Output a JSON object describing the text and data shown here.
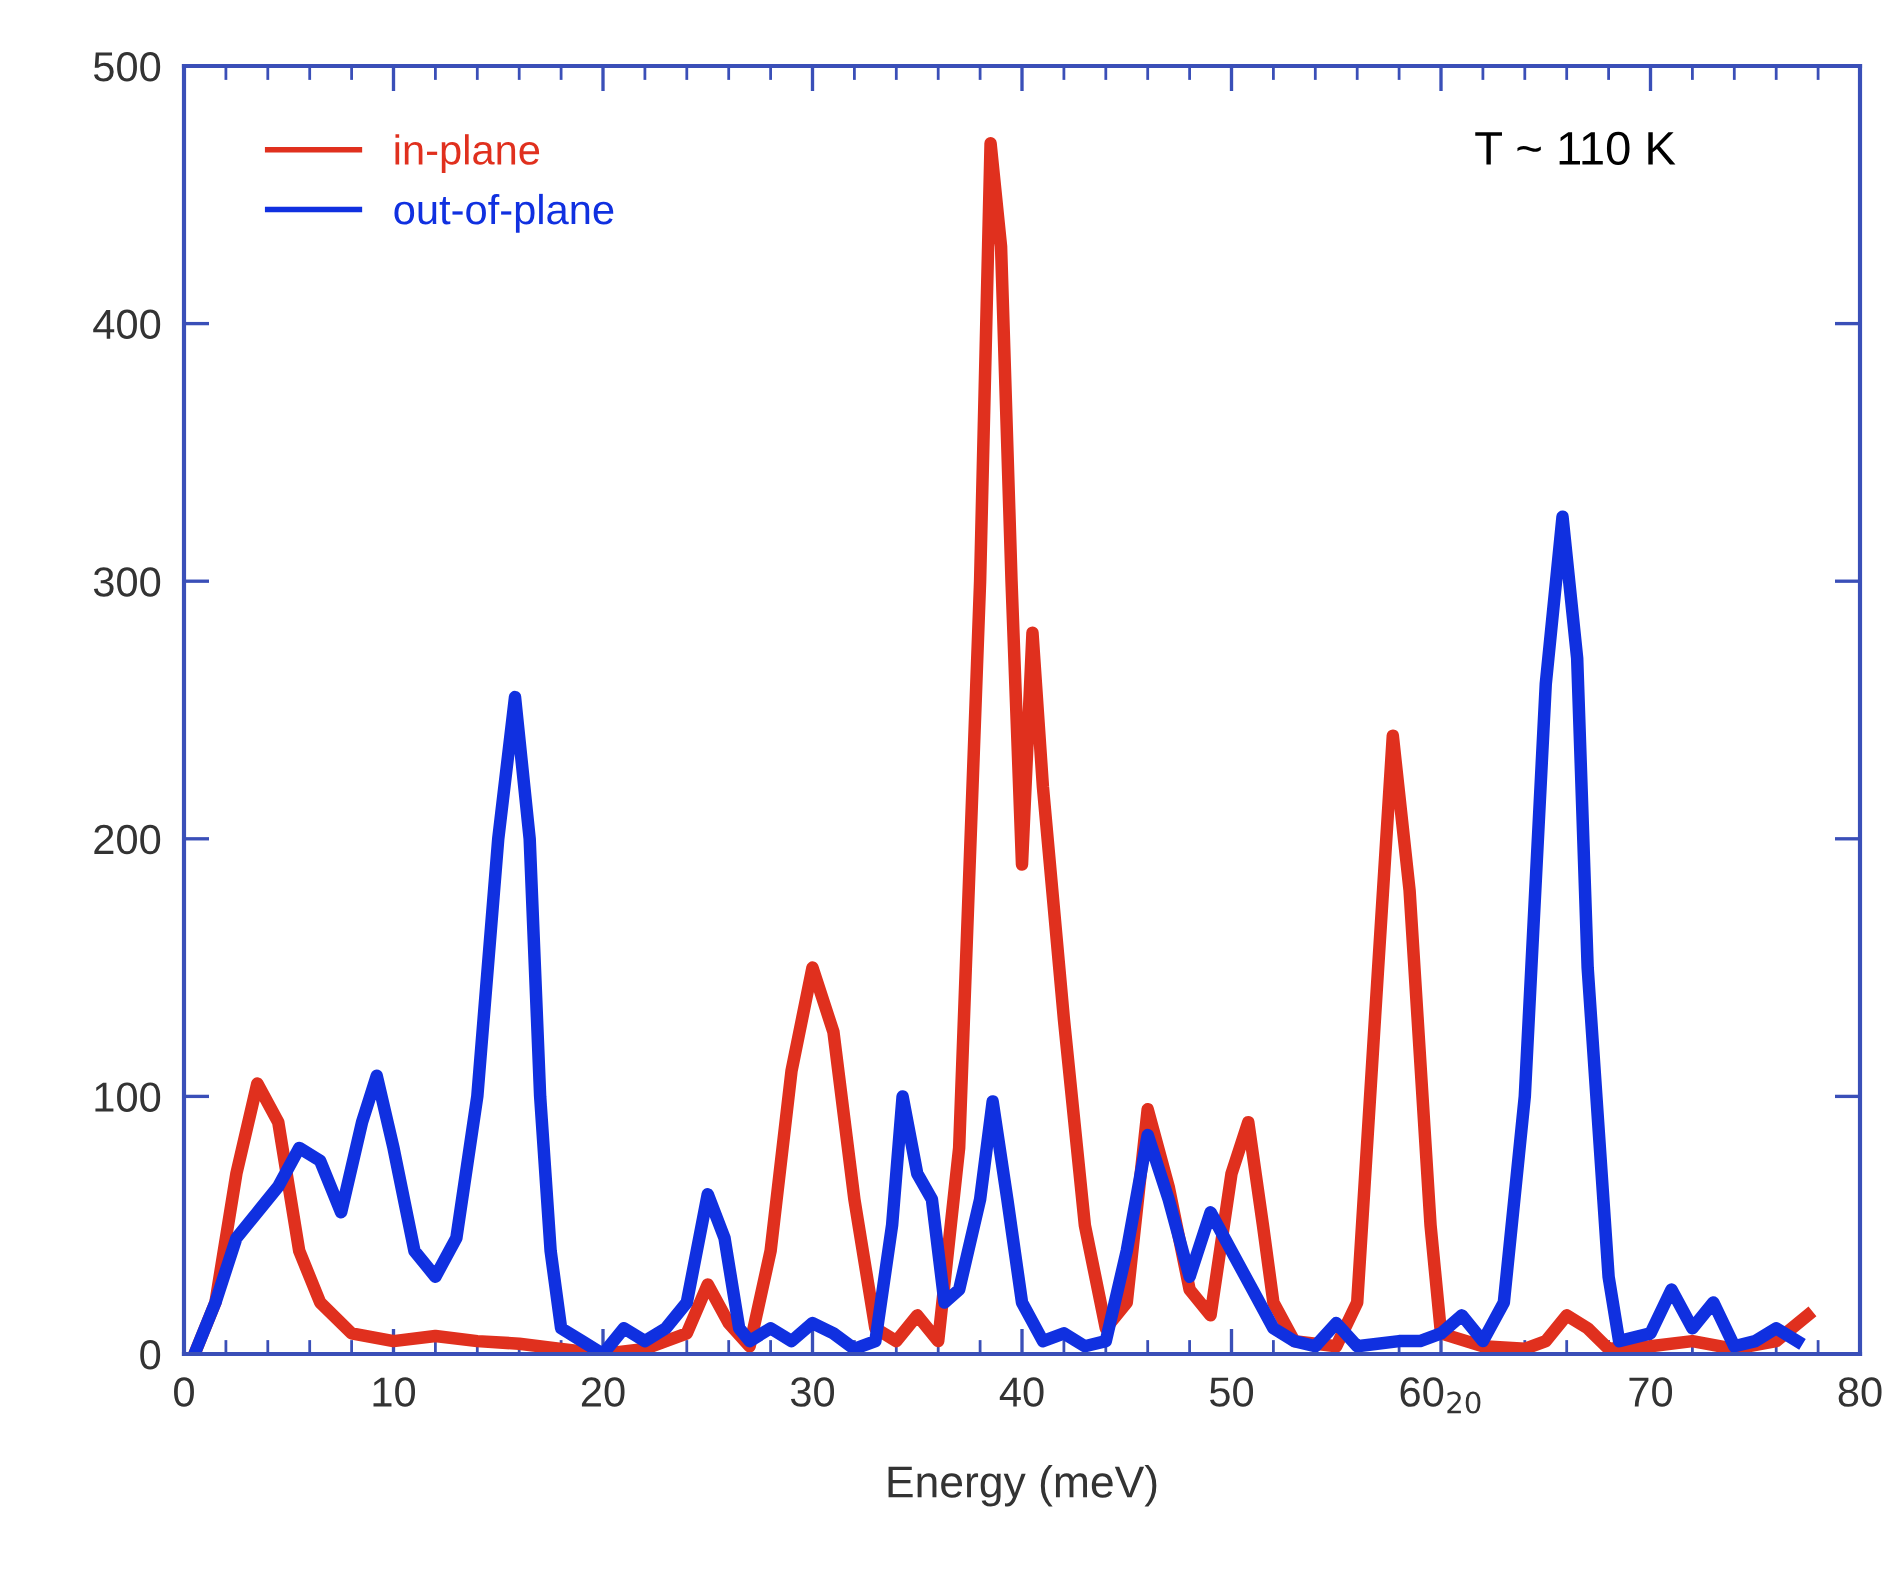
{
  "chart_data": {
    "type": "line",
    "xlabel": "Energy (meV)",
    "annotations": [
      "T ~ 110 K"
    ],
    "xlim": [
      0,
      80
    ],
    "xticks": [
      0,
      10,
      20,
      30,
      40,
      50,
      {
        "value": 60,
        "label": "60$_{20}$"
      },
      70,
      80
    ],
    "ylim": [
      0,
      500
    ],
    "yticks": [
      0,
      100,
      200,
      300,
      400,
      500
    ],
    "legend": "top left",
    "grid": false,
    "marker": "none",
    "line_style": "solid",
    "series": [
      {
        "name": "in-plane",
        "color": "#e0301e",
        "x": [
          0.5,
          1.5,
          2.5,
          3.5,
          4.5,
          5.5,
          6.5,
          8,
          10,
          12,
          14,
          16,
          18,
          20,
          22,
          24,
          25,
          26,
          27,
          28,
          29,
          30,
          31,
          32,
          33,
          34,
          35,
          36,
          37,
          38,
          38.5,
          39,
          39.5,
          40,
          40.5,
          41,
          42,
          43,
          44,
          45,
          46,
          47,
          48,
          49,
          50,
          50.8,
          51.5,
          52,
          53,
          55,
          56,
          57,
          57.7,
          58.5,
          59.5,
          60,
          62,
          64,
          65,
          66,
          67,
          68,
          70,
          72,
          74,
          76,
          77.5
        ],
        "values": [
          0,
          20,
          70,
          105,
          90,
          40,
          20,
          8,
          5,
          7,
          5,
          4,
          2,
          0,
          2,
          8,
          27,
          12,
          3,
          40,
          110,
          150,
          125,
          60,
          10,
          5,
          15,
          5,
          80,
          300,
          470,
          430,
          300,
          190,
          280,
          220,
          130,
          50,
          10,
          20,
          95,
          65,
          25,
          15,
          70,
          90,
          50,
          20,
          5,
          3,
          20,
          150,
          240,
          180,
          50,
          8,
          3,
          2,
          5,
          15,
          10,
          2,
          3,
          5,
          2,
          5,
          15
        ]
      },
      {
        "name": "out-of-plane",
        "color": "#1030e0",
        "x": [
          0.5,
          1.5,
          2.5,
          3.5,
          4.5,
          5.5,
          6.5,
          7.5,
          8.5,
          9.2,
          10,
          11,
          12,
          13,
          14,
          15,
          15.8,
          16.5,
          17,
          17.5,
          18,
          19,
          20,
          21,
          22,
          23,
          24,
          25,
          25.8,
          26.5,
          27,
          28,
          29,
          30,
          31,
          32,
          33,
          33.8,
          34.3,
          35,
          35.7,
          36.3,
          37,
          38,
          38.6,
          39.3,
          40,
          41,
          42,
          43,
          44,
          45,
          46,
          47,
          48,
          49,
          50,
          51,
          52,
          53,
          54,
          55,
          56,
          58,
          59,
          60,
          61,
          62,
          63,
          64,
          65,
          65.8,
          66.5,
          67,
          68,
          68.5,
          70,
          71,
          72,
          73,
          74,
          75,
          76,
          77
        ],
        "values": [
          0,
          20,
          45,
          55,
          65,
          80,
          75,
          55,
          90,
          108,
          80,
          40,
          30,
          45,
          100,
          200,
          255,
          200,
          100,
          40,
          10,
          5,
          0,
          10,
          5,
          10,
          20,
          62,
          45,
          10,
          5,
          10,
          5,
          12,
          8,
          2,
          5,
          50,
          100,
          70,
          60,
          20,
          25,
          60,
          98,
          60,
          20,
          5,
          8,
          3,
          5,
          40,
          85,
          60,
          30,
          55,
          40,
          25,
          10,
          5,
          3,
          12,
          3,
          5,
          5,
          8,
          15,
          5,
          20,
          100,
          260,
          325,
          270,
          150,
          30,
          5,
          8,
          25,
          10,
          20,
          3,
          5,
          10,
          5
        ]
      }
    ]
  }
}
